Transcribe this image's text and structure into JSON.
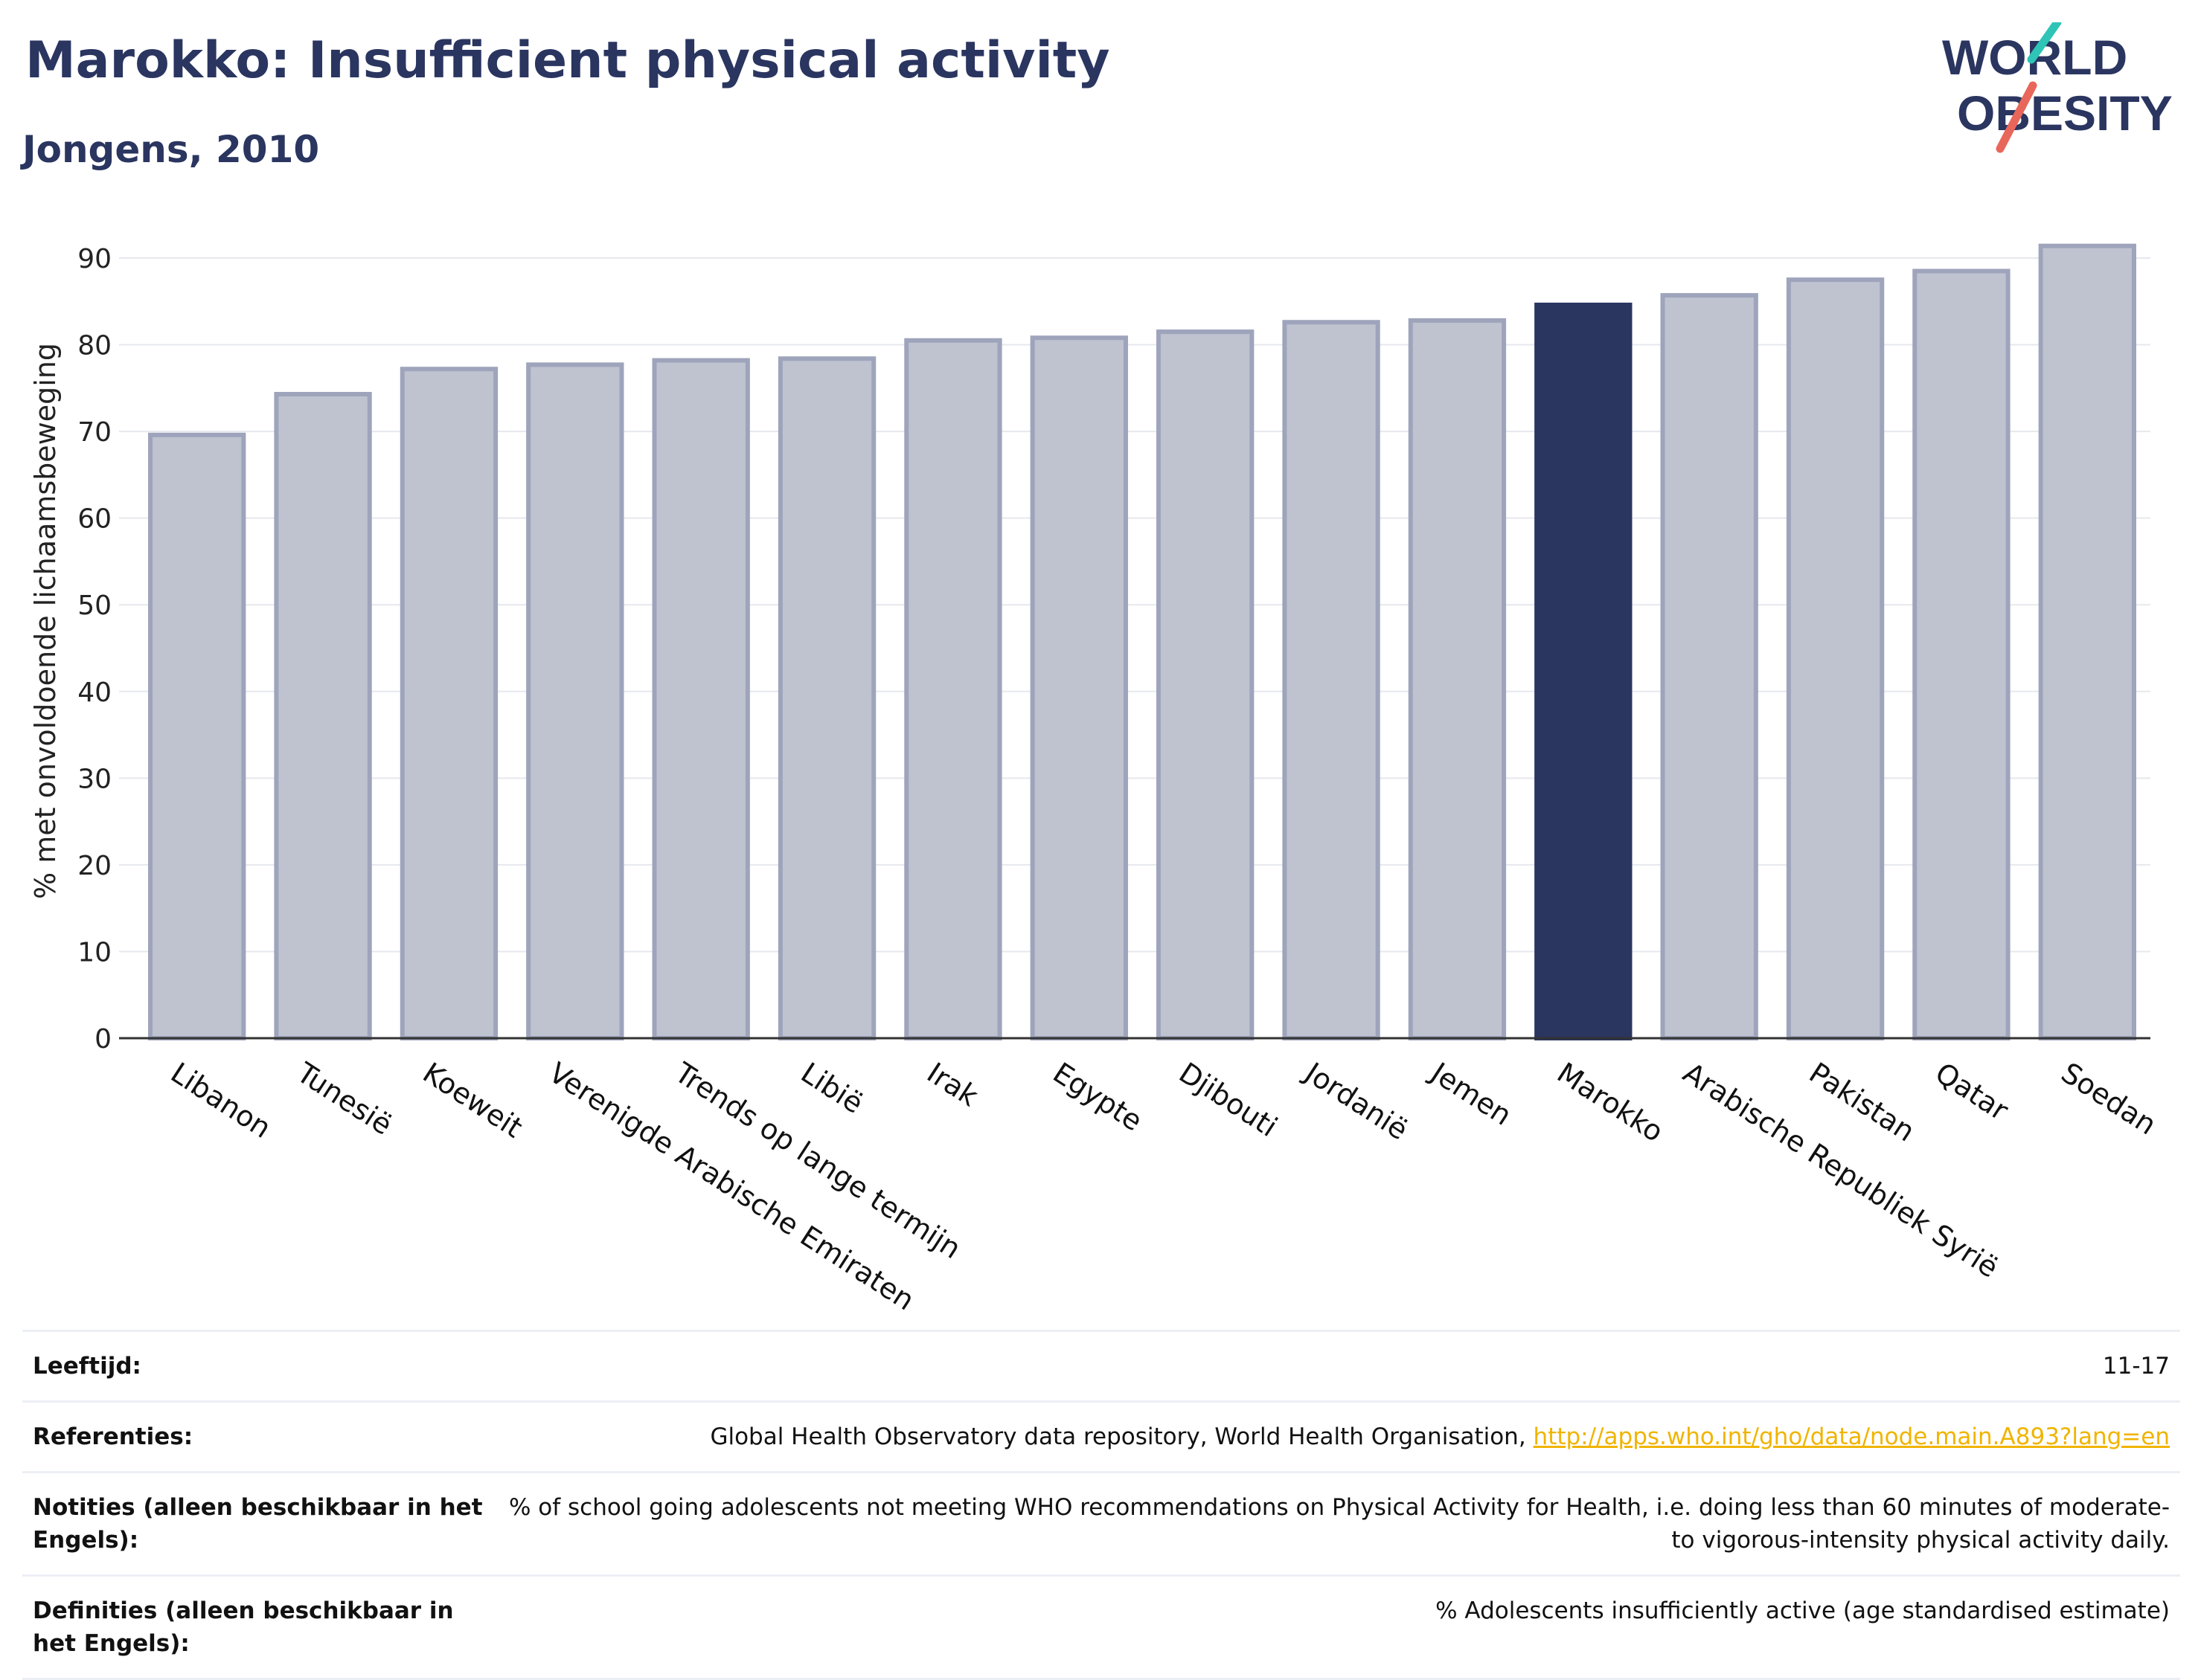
{
  "header": {
    "title": "Marokko: Insufficient physical activity",
    "subtitle": "Jongens, 2010",
    "logo_text_1": "WORLD",
    "logo_text_2": "OBESITY"
  },
  "colors": {
    "highlight": "#2a3560",
    "bar_fill": "#bfc3d0",
    "bar_stroke": "#9ea4bb",
    "link": "#f0b400",
    "logo_teal": "#2ec4b6",
    "logo_red": "#e8675a"
  },
  "chart_data": {
    "type": "bar",
    "title": "Marokko: Insufficient physical activity",
    "subtitle": "Jongens, 2010",
    "ylabel": "% met onvoldoende lichaamsbeweging",
    "xlabel": "",
    "ylim": [
      0,
      95
    ],
    "yticks": [
      0,
      10,
      20,
      30,
      40,
      50,
      60,
      70,
      80,
      90
    ],
    "grid": true,
    "highlight_category": "Marokko",
    "categories": [
      "Libanon",
      "Tunesië",
      "Koeweit",
      "Verenigde Arabische Emiraten",
      "Trends op lange termijn",
      "Libië",
      "Irak",
      "Egypte",
      "Djibouti",
      "Jordanië",
      "Jemen",
      "Marokko",
      "Arabische Republiek Syrië",
      "Pakistan",
      "Qatar",
      "Soedan"
    ],
    "values": [
      69.6,
      74.3,
      77.2,
      77.7,
      78.2,
      78.4,
      80.5,
      80.8,
      81.5,
      82.6,
      82.8,
      84.6,
      85.7,
      87.5,
      88.5,
      91.4
    ]
  },
  "meta": [
    {
      "label": "Leeftijd:",
      "value": "11-17",
      "link": ""
    },
    {
      "label": "Referenties:",
      "value": "Global Health Observatory data repository, World Health Organisation, ",
      "link": "http://apps.who.int/gho/data/node.main.A893?lang=en"
    },
    {
      "label": "Notities (alleen beschikbaar in het Engels):",
      "value": "% of school going adolescents not meeting WHO recommendations on Physical Activity for Health, i.e. doing less than 60 minutes of moderate- to vigorous-intensity physical activity daily.",
      "link": ""
    },
    {
      "label": "Definities (alleen beschikbaar in het Engels):",
      "value": "% Adolescents insufficiently active (age standardised estimate)",
      "link": ""
    }
  ]
}
